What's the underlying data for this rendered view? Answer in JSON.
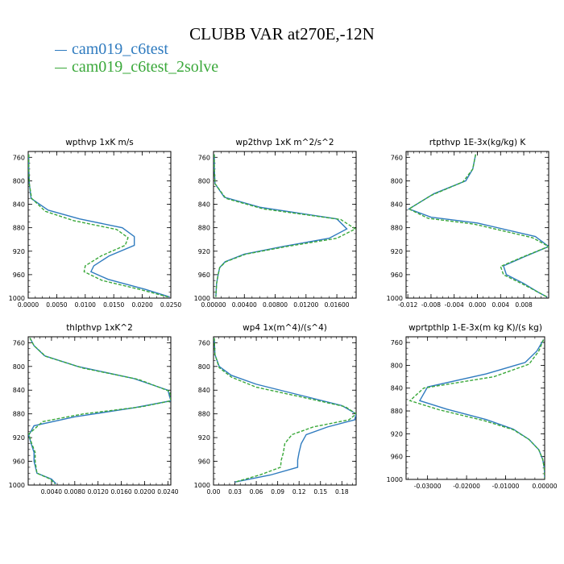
{
  "title": "CLUBB VAR at270E,-12N",
  "legend": [
    {
      "label": "cam019_c6test",
      "color": "#2f7bbf"
    },
    {
      "label": "cam019_c6test_2solve",
      "color": "#3aa83a"
    }
  ],
  "chart_data": [
    {
      "type": "line",
      "title": "wpthvp  1xK m/s",
      "xlim": [
        0,
        0.025
      ],
      "xticks": [
        "0.0000",
        "0.0050",
        "0.0100",
        "0.0150",
        "0.0200",
        "0.0250"
      ],
      "xtick_values": [
        0,
        0.005,
        0.01,
        0.015,
        0.02,
        0.025
      ],
      "ylim": [
        1000,
        750
      ],
      "yticks": [
        760,
        800,
        840,
        880,
        920,
        960,
        1000
      ],
      "series": [
        {
          "color": "#2f7bbf",
          "dashed": false,
          "points": [
            [
              0.0001,
              755
            ],
            [
              0.0001,
              780
            ],
            [
              0.0002,
              805
            ],
            [
              0.0005,
              830
            ],
            [
              0.0035,
              850
            ],
            [
              0.009,
              865
            ],
            [
              0.0165,
              880
            ],
            [
              0.0186,
              895
            ],
            [
              0.0186,
              910
            ],
            [
              0.0142,
              928
            ],
            [
              0.0115,
              945
            ],
            [
              0.011,
              955
            ],
            [
              0.014,
              968
            ],
            [
              0.0205,
              985
            ],
            [
              0.0248,
              998
            ]
          ]
        },
        {
          "color": "#3aa83a",
          "dashed": true,
          "points": [
            [
              0.0001,
              755
            ],
            [
              0.0001,
              780
            ],
            [
              0.0002,
              805
            ],
            [
              0.0006,
              830
            ],
            [
              0.003,
              852
            ],
            [
              0.008,
              868
            ],
            [
              0.0155,
              883
            ],
            [
              0.0175,
              897
            ],
            [
              0.017,
              910
            ],
            [
              0.0128,
              928
            ],
            [
              0.01,
              945
            ],
            [
              0.0098,
              955
            ],
            [
              0.013,
              970
            ],
            [
              0.0195,
              985
            ],
            [
              0.0245,
              998
            ]
          ]
        }
      ]
    },
    {
      "type": "line",
      "title": "wp2thvp  1xK m^2/s^2",
      "xlim": [
        0,
        0.0185
      ],
      "xticks": [
        "0.00000",
        "0.00400",
        "0.00800",
        "0.01200",
        "0.01600"
      ],
      "xtick_values": [
        0,
        0.004,
        0.008,
        0.012,
        0.016
      ],
      "ylim": [
        1000,
        750
      ],
      "yticks": [
        760,
        800,
        840,
        880,
        920,
        960,
        1000
      ],
      "series": [
        {
          "color": "#2f7bbf",
          "dashed": false,
          "points": [
            [
              0.0001,
              755
            ],
            [
              0.0001,
              780
            ],
            [
              0.0002,
              805
            ],
            [
              0.0014,
              828
            ],
            [
              0.006,
              845
            ],
            [
              0.016,
              865
            ],
            [
              0.0173,
              882
            ],
            [
              0.015,
              898
            ],
            [
              0.009,
              912
            ],
            [
              0.004,
              925
            ],
            [
              0.0015,
              938
            ],
            [
              0.0008,
              948
            ],
            [
              0.0006,
              960
            ],
            [
              0.0004,
              975
            ],
            [
              0.0003,
              998
            ]
          ]
        },
        {
          "color": "#3aa83a",
          "dashed": true,
          "points": [
            [
              0.0001,
              755
            ],
            [
              0.0001,
              780
            ],
            [
              0.0002,
              805
            ],
            [
              0.0016,
              830
            ],
            [
              0.0065,
              848
            ],
            [
              0.0165,
              866
            ],
            [
              0.0184,
              882
            ],
            [
              0.016,
              898
            ],
            [
              0.0095,
              912
            ],
            [
              0.0042,
              925
            ],
            [
              0.0016,
              938
            ],
            [
              0.0008,
              948
            ],
            [
              0.0006,
              960
            ],
            [
              0.0004,
              975
            ],
            [
              0.0003,
              998
            ]
          ]
        }
      ]
    },
    {
      "type": "line",
      "title": "rtpthvp  1E-3x(kg/kg) K",
      "xlim": [
        -0.0123,
        0.0123
      ],
      "xticks": [
        "-0.012",
        "-0.008",
        "-0.004",
        "0.000",
        "0.004",
        "0.008"
      ],
      "xtick_values": [
        -0.012,
        -0.008,
        -0.004,
        0,
        0.004,
        0.008
      ],
      "ylim": [
        1000,
        750
      ],
      "yticks": [
        760,
        800,
        840,
        880,
        920,
        960,
        1000
      ],
      "series": [
        {
          "color": "#2f7bbf",
          "dashed": false,
          "points": [
            [
              -0.0003,
              755
            ],
            [
              -0.0008,
              780
            ],
            [
              -0.002,
              800
            ],
            [
              -0.0075,
              822
            ],
            [
              -0.0118,
              848
            ],
            [
              -0.008,
              862
            ],
            [
              0.0,
              872
            ],
            [
              0.01,
              895
            ],
            [
              0.0123,
              912
            ],
            [
              0.008,
              930
            ],
            [
              0.0045,
              945
            ],
            [
              0.005,
              960
            ],
            [
              0.008,
              975
            ],
            [
              0.0105,
              990
            ],
            [
              0.012,
              998
            ]
          ]
        },
        {
          "color": "#3aa83a",
          "dashed": true,
          "points": [
            [
              -0.0003,
              755
            ],
            [
              -0.0008,
              780
            ],
            [
              -0.0025,
              802
            ],
            [
              -0.008,
              825
            ],
            [
              -0.0118,
              848
            ],
            [
              -0.0085,
              864
            ],
            [
              -0.0005,
              874
            ],
            [
              0.0095,
              897
            ],
            [
              0.0123,
              912
            ],
            [
              0.0078,
              930
            ],
            [
              0.004,
              946
            ],
            [
              0.0045,
              960
            ],
            [
              0.0078,
              976
            ],
            [
              0.0105,
              990
            ],
            [
              0.012,
              998
            ]
          ]
        }
      ]
    },
    {
      "type": "line",
      "title": "thlpthvp  1xK^2",
      "xlim": [
        0,
        0.0245
      ],
      "xticks": [
        "0.0040",
        "0.0080",
        "0.0120",
        "0.0160",
        "0.0200",
        "0.0240"
      ],
      "xtick_values": [
        0.004,
        0.008,
        0.012,
        0.016,
        0.02,
        0.024
      ],
      "ylim": [
        1000,
        750
      ],
      "yticks": [
        760,
        800,
        840,
        880,
        920,
        960,
        1000
      ],
      "series": [
        {
          "color": "#2f7bbf",
          "dashed": false,
          "points": [
            [
              0.0003,
              752
            ],
            [
              0.001,
              765
            ],
            [
              0.0028,
              782
            ],
            [
              0.0085,
              800
            ],
            [
              0.018,
              820
            ],
            [
              0.024,
              840
            ],
            [
              0.0245,
              858
            ],
            [
              0.018,
              870
            ],
            [
              0.008,
              885
            ],
            [
              0.001,
              900
            ],
            [
              0.0001,
              916
            ],
            [
              0.0005,
              930
            ],
            [
              0.001,
              945
            ],
            [
              0.001,
              960
            ],
            [
              0.0015,
              980
            ],
            [
              0.004,
              990
            ],
            [
              0.0048,
              998
            ]
          ]
        },
        {
          "color": "#3aa83a",
          "dashed": true,
          "points": [
            [
              0.0003,
              752
            ],
            [
              0.001,
              765
            ],
            [
              0.003,
              783
            ],
            [
              0.0095,
              803
            ],
            [
              0.019,
              822
            ],
            [
              0.0243,
              842
            ],
            [
              0.0245,
              858
            ],
            [
              0.0195,
              868
            ],
            [
              0.0095,
              880
            ],
            [
              0.0025,
              893
            ],
            [
              0.0001,
              914
            ],
            [
              0.0006,
              930
            ],
            [
              0.0012,
              945
            ],
            [
              0.0012,
              960
            ],
            [
              0.0015,
              980
            ],
            [
              0.0038,
              990
            ],
            [
              0.0046,
              998
            ]
          ]
        }
      ]
    },
    {
      "type": "line",
      "title": "wp4  1x(m^4)/(s^4)",
      "xlim": [
        0,
        0.2
      ],
      "xticks": [
        "0.00",
        "0.03",
        "0.06",
        "0.09",
        "0.12",
        "0.15",
        "0.18"
      ],
      "xtick_values": [
        0,
        0.03,
        0.06,
        0.09,
        0.12,
        0.15,
        0.18
      ],
      "ylim": [
        1000,
        750
      ],
      "yticks": [
        760,
        800,
        840,
        880,
        920,
        960,
        1000
      ],
      "series": [
        {
          "color": "#2f7bbf",
          "dashed": false,
          "points": [
            [
              0.001,
              752
            ],
            [
              0.002,
              780
            ],
            [
              0.008,
              800
            ],
            [
              0.025,
              815
            ],
            [
              0.06,
              830
            ],
            [
              0.12,
              848
            ],
            [
              0.18,
              866
            ],
            [
              0.2,
              880
            ],
            [
              0.198,
              890
            ],
            [
              0.16,
              902
            ],
            [
              0.13,
              915
            ],
            [
              0.123,
              930
            ],
            [
              0.12,
              945
            ],
            [
              0.118,
              958
            ],
            [
              0.118,
              970
            ],
            [
              0.08,
              983
            ],
            [
              0.03,
              995
            ]
          ]
        },
        {
          "color": "#3aa83a",
          "dashed": true,
          "points": [
            [
              0.001,
              752
            ],
            [
              0.002,
              780
            ],
            [
              0.008,
              802
            ],
            [
              0.025,
              818
            ],
            [
              0.06,
              835
            ],
            [
              0.125,
              852
            ],
            [
              0.185,
              868
            ],
            [
              0.2,
              880
            ],
            [
              0.19,
              890
            ],
            [
              0.14,
              902
            ],
            [
              0.11,
              915
            ],
            [
              0.1,
              930
            ],
            [
              0.098,
              945
            ],
            [
              0.095,
              958
            ],
            [
              0.094,
              970
            ],
            [
              0.065,
              983
            ],
            [
              0.03,
              995
            ]
          ]
        }
      ]
    },
    {
      "type": "line",
      "title": "wprtpthlp  1-E-3x(m kg K)/(s kg)",
      "xlim": [
        -0.0355,
        0
      ],
      "xticks": [
        "-0.03000",
        "-0.02000",
        "-0.01000",
        "0.00000"
      ],
      "xtick_values": [
        -0.03,
        -0.02,
        -0.01,
        0
      ],
      "ylim": [
        1000,
        750
      ],
      "yticks": [
        760,
        800,
        840,
        880,
        920,
        960,
        1000
      ],
      "series": [
        {
          "color": "#2f7bbf",
          "dashed": false,
          "points": [
            [
              -0.0003,
              755
            ],
            [
              -0.002,
              775
            ],
            [
              -0.005,
              795
            ],
            [
              -0.015,
              815
            ],
            [
              -0.03,
              838
            ],
            [
              -0.032,
              862
            ],
            [
              -0.025,
              877
            ],
            [
              -0.015,
              895
            ],
            [
              -0.008,
              912
            ],
            [
              -0.004,
              930
            ],
            [
              -0.0015,
              948
            ],
            [
              -0.0005,
              965
            ],
            [
              -0.0001,
              980
            ],
            [
              0.0,
              998
            ]
          ]
        },
        {
          "color": "#3aa83a",
          "dashed": true,
          "points": [
            [
              -0.0003,
              755
            ],
            [
              -0.0015,
              775
            ],
            [
              -0.004,
              798
            ],
            [
              -0.013,
              820
            ],
            [
              -0.031,
              840
            ],
            [
              -0.0345,
              862
            ],
            [
              -0.027,
              878
            ],
            [
              -0.0155,
              897
            ],
            [
              -0.008,
              913
            ],
            [
              -0.004,
              930
            ],
            [
              -0.0015,
              948
            ],
            [
              -0.0005,
              965
            ],
            [
              -0.0001,
              980
            ],
            [
              0.0,
              998
            ]
          ]
        }
      ]
    }
  ]
}
